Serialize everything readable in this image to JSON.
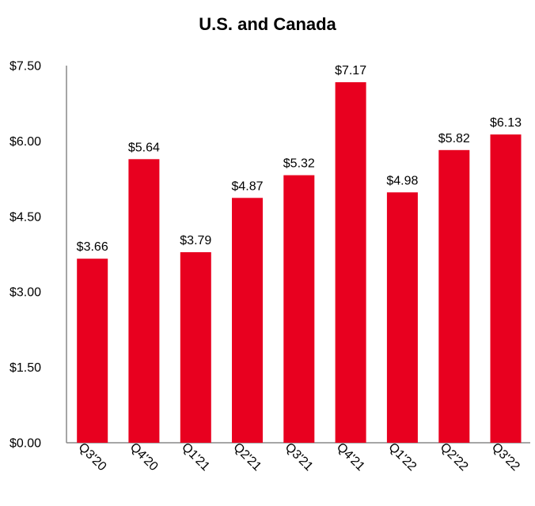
{
  "colors": {
    "bar": "#e8001f",
    "axis": "#888888",
    "text": "#000000"
  },
  "chart_data": {
    "type": "bar",
    "title": "U.S. and Canada",
    "xlabel": "",
    "ylabel": "",
    "ylim": [
      0,
      7.5
    ],
    "yticks": [
      0,
      1.5,
      3.0,
      4.5,
      6.0,
      7.5
    ],
    "ytick_labels": [
      "$0.00",
      "$1.50",
      "$3.00",
      "$4.50",
      "$6.00",
      "$7.50"
    ],
    "grid": false,
    "legend": "none",
    "categories": [
      "Q3'20",
      "Q4'20",
      "Q1'21",
      "Q2'21",
      "Q3'21",
      "Q4'21",
      "Q1'22",
      "Q2'22",
      "Q3'22"
    ],
    "values": [
      3.66,
      5.64,
      3.79,
      4.87,
      5.32,
      7.17,
      4.98,
      5.82,
      6.13
    ],
    "data_labels": [
      "$3.66",
      "$5.64",
      "$3.79",
      "$4.87",
      "$5.32",
      "$7.17",
      "$4.98",
      "$5.82",
      "$6.13"
    ]
  }
}
